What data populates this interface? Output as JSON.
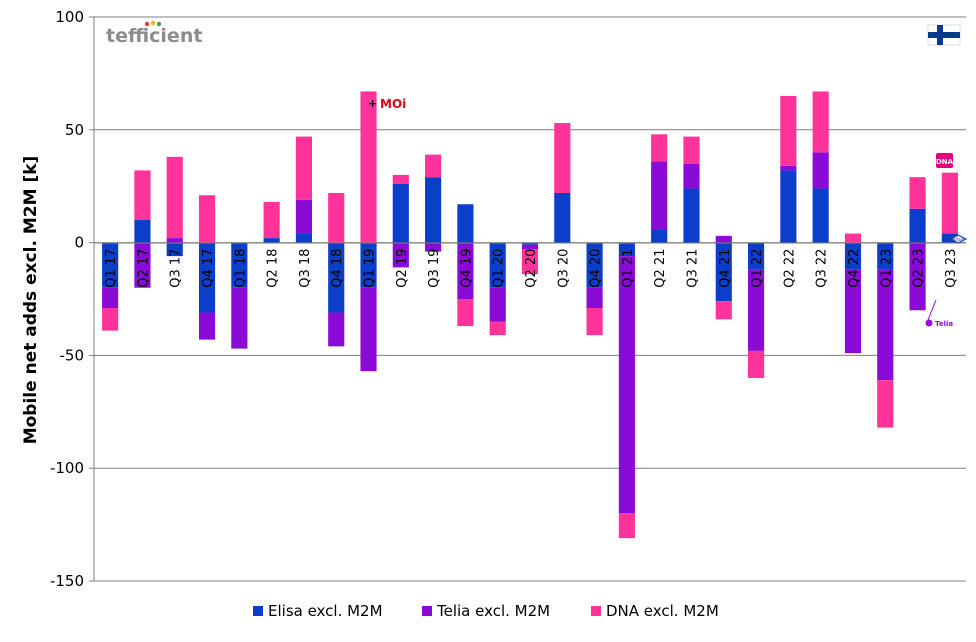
{
  "brand": {
    "logo_text": "tefficient",
    "logo_prefix_color": "#8c8c8c",
    "logo_suffix_color": "#b8a06a",
    "flag": "finland-flag-icon"
  },
  "operator_logos": {
    "moi": "moi-logo",
    "dna": "dna-logo",
    "telia": "telia-logo",
    "elisa": "elisa-logo"
  },
  "chart_data": {
    "type": "bar",
    "stacked": true,
    "ylabel": "Mobile net adds excl. M2M [k]",
    "ylim": [
      -150,
      100
    ],
    "yticks": [
      -150,
      -100,
      -50,
      0,
      50,
      100
    ],
    "ytick_labels": [
      "-150",
      "-100",
      "-50",
      "0",
      "50",
      "100"
    ],
    "categories": [
      "Q1 17",
      "Q2 17",
      "Q3 17",
      "Q4 17",
      "Q1 18",
      "Q2 18",
      "Q3 18",
      "Q4 18",
      "Q1 19",
      "Q2 19",
      "Q3 19",
      "Q4 19",
      "Q1 20",
      "Q2 20",
      "Q3 20",
      "Q4 20",
      "Q1 21",
      "Q2 21",
      "Q3 21",
      "Q4 21",
      "Q1 22",
      "Q2 22",
      "Q3 22",
      "Q4 22",
      "Q1 23",
      "Q2 23",
      "Q3 23"
    ],
    "legend_position": "bottom",
    "series": [
      {
        "name": "Elisa excl. M2M",
        "color": "#0b3fc9",
        "values": [
          -20,
          10,
          -6,
          -31,
          -20,
          2,
          4,
          -31,
          -20,
          26,
          29,
          17,
          -20,
          -1,
          22,
          -20,
          -6,
          6,
          24,
          -26,
          -12,
          32,
          24,
          -12,
          -12,
          15,
          4
        ]
      },
      {
        "name": "Telia excl. M2M",
        "color": "#8a0ad6",
        "values": [
          -9,
          -20,
          2,
          -12,
          -27,
          0,
          15,
          -15,
          -37,
          -11,
          -4,
          -25,
          -15,
          -2,
          0,
          -9,
          -114,
          30,
          11,
          3,
          -36,
          2,
          16,
          -37,
          -49,
          -30,
          0
        ]
      },
      {
        "name": "DNA excl. M2M",
        "color": "#ff3399",
        "values": [
          -10,
          22,
          36,
          21,
          0,
          16,
          28,
          22,
          67,
          4,
          10,
          -12,
          -6,
          -11,
          31,
          -12,
          -11,
          12,
          12,
          -8,
          -12,
          31,
          27,
          4,
          -21,
          14,
          27
        ]
      }
    ]
  }
}
